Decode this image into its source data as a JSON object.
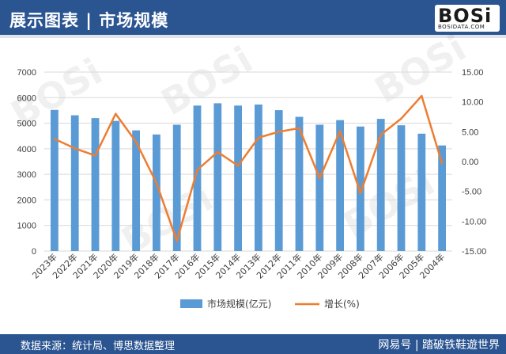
{
  "header": {
    "title": "展示图表 | 市场规模",
    "logo_text": "BOSi",
    "logo_sub": "BOSIDATA.COM"
  },
  "footer": {
    "source": "数据来源：统计局、博思数据整理",
    "credit": "网易号 | 踏破铁鞋遊世界"
  },
  "colors": {
    "header_bg": "#2b5591",
    "bar": "#5b9bd5",
    "line": "#ed7d31"
  },
  "chart_data": {
    "type": "bar+line",
    "categories": [
      "2023年",
      "2022年",
      "2021年",
      "2020年",
      "2019年",
      "2018年",
      "2017年",
      "2016年",
      "2015年",
      "2014年",
      "2013年",
      "2012年",
      "2011年",
      "2010年",
      "2009年",
      "2008年",
      "2007年",
      "2006年",
      "2005年",
      "2004年"
    ],
    "series": [
      {
        "name": "市场规模(亿元)",
        "type": "bar",
        "axis": "left",
        "values": [
          5520,
          5310,
          5200,
          5090,
          4720,
          4560,
          4940,
          5690,
          5780,
          5690,
          5730,
          5510,
          5250,
          4940,
          5120,
          4870,
          5170,
          4920,
          4590,
          4130
        ]
      },
      {
        "name": "增长(%)",
        "type": "line",
        "axis": "right",
        "values": [
          3.8,
          2.2,
          1.0,
          8.0,
          3.3,
          -3.6,
          -13.3,
          -1.4,
          1.6,
          -0.7,
          4.0,
          5.0,
          5.6,
          -2.8,
          5.1,
          -5.3,
          4.5,
          7.2,
          11.0,
          -0.3
        ]
      }
    ],
    "y_left": {
      "min": 0,
      "max": 7000,
      "step": 1000,
      "ticks": [
        "0",
        "1000",
        "2000",
        "3000",
        "4000",
        "5000",
        "6000",
        "7000"
      ]
    },
    "y_right": {
      "min": -15,
      "max": 15,
      "step": 5,
      "ticks": [
        "-15.00",
        "-10.00",
        "-5.00",
        "0.00",
        "5.00",
        "10.00",
        "15.00"
      ]
    },
    "grid": true,
    "legend_position": "bottom"
  }
}
